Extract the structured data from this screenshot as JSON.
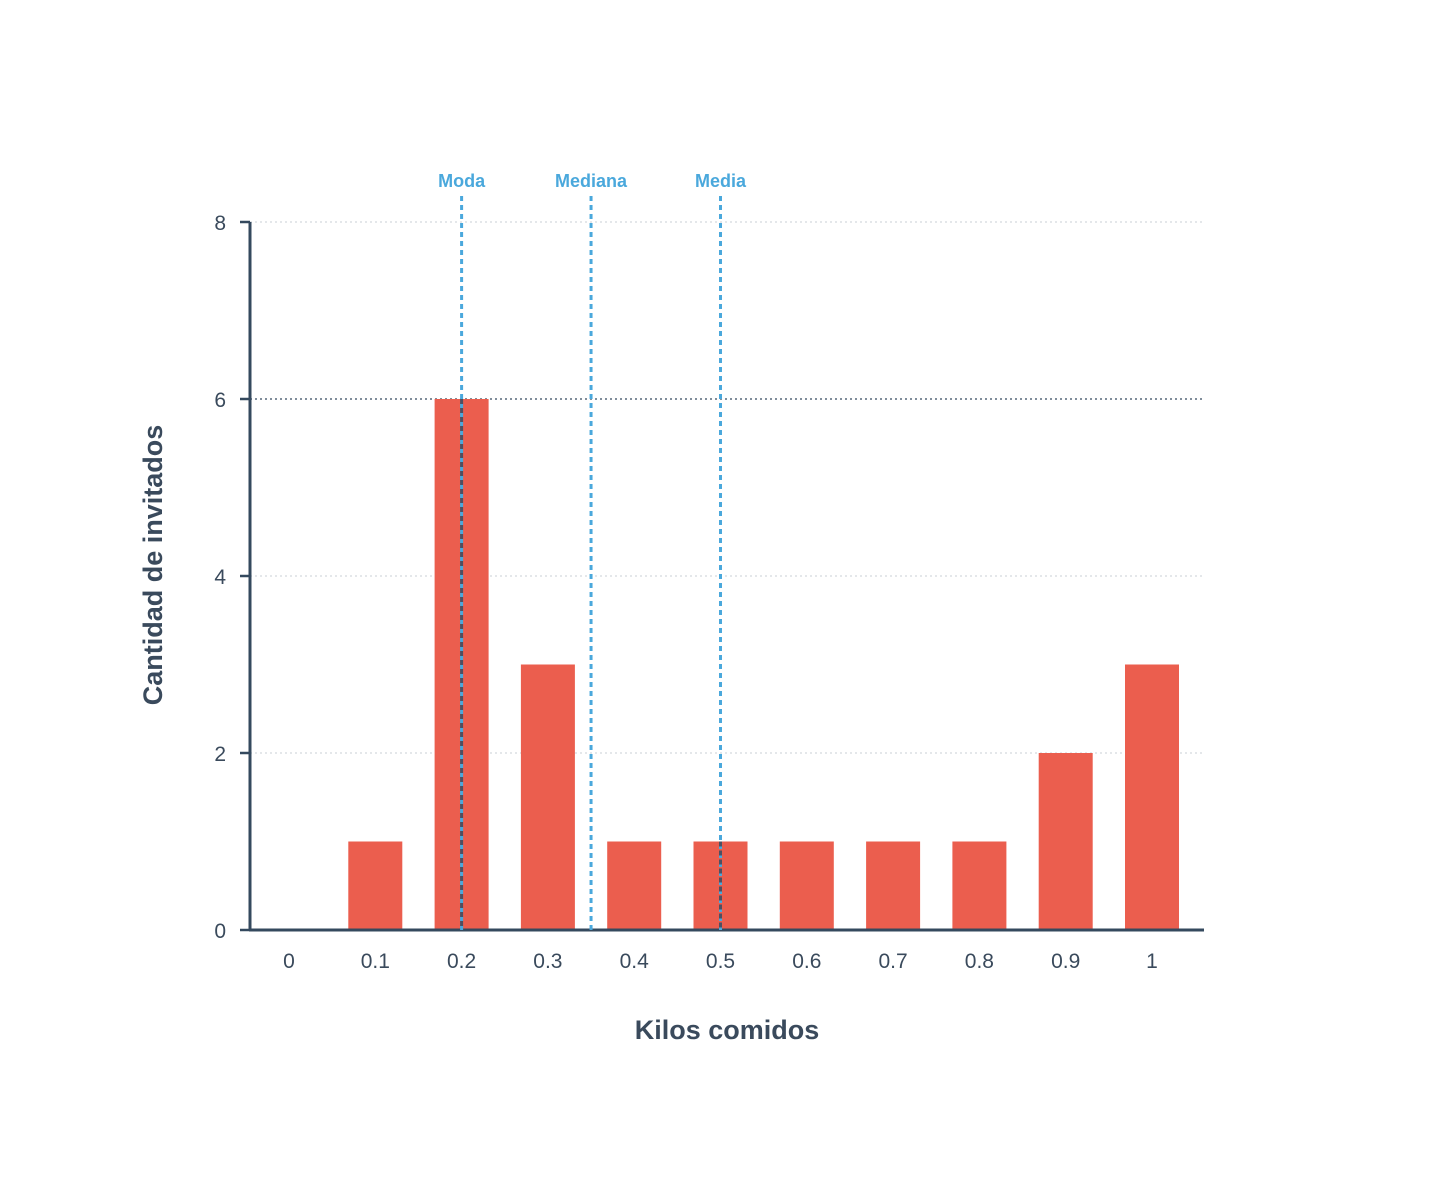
{
  "chart_data": {
    "type": "bar",
    "categories": [
      "0",
      "0.1",
      "0.2",
      "0.3",
      "0.4",
      "0.5",
      "0.6",
      "0.7",
      "0.8",
      "0.9",
      "1"
    ],
    "values": [
      0,
      1,
      6,
      3,
      1,
      1,
      1,
      1,
      1,
      2,
      3
    ],
    "xlabel": "Kilos comidos",
    "ylabel": "Cantidad de invitados",
    "ylim": [
      0,
      8
    ],
    "yticks": [
      "0",
      "2",
      "4",
      "6",
      "8"
    ],
    "grid": true,
    "reference_lines": [
      {
        "label": "Moda",
        "x": 0.2
      },
      {
        "label": "Mediana",
        "x": 0.35
      },
      {
        "label": "Media",
        "x": 0.5
      }
    ]
  },
  "colors": {
    "bar": "#eb5e4e",
    "reference_line": "#4aa8dc",
    "axis": "#34495e",
    "text": "#3a4a5c",
    "grid": "#c9cfd4"
  }
}
